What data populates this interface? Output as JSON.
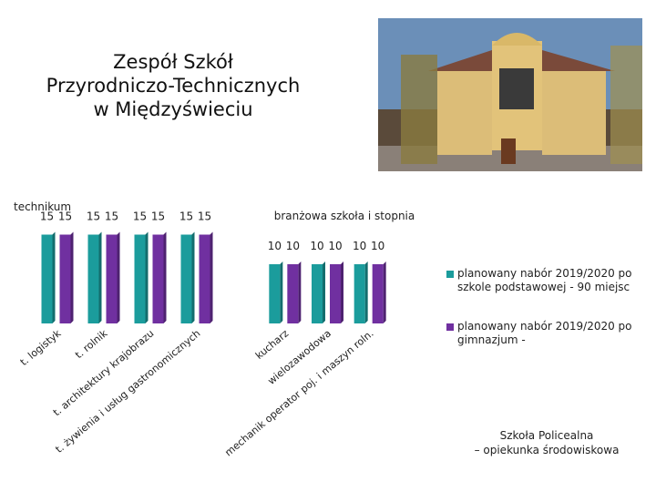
{
  "slide": {
    "title_lines": [
      "Zespół Szkół",
      "Przyrodniczo-Technicznych",
      "w Międzyświeciu"
    ],
    "footer_lines": [
      "Szkoła Policealna",
      "– opiekunka środowiskowa"
    ]
  },
  "chart_data": [
    {
      "type": "bar",
      "title": "technikum",
      "categories": [
        "t. logistyk",
        "t. rolnik",
        "t. architektury krajobrazu",
        "t. żywienia i usług gastronomicznych"
      ],
      "series": [
        {
          "name": "planowany nabór 2019/2020 po szkole podstawowej - 90 miejsc",
          "color": "#1b9c9c",
          "values": [
            15,
            15,
            15,
            15
          ]
        },
        {
          "name": "planowany nabór 2019/2020 po gimnazjum -",
          "color": "#7030a0",
          "values": [
            15,
            15,
            15,
            15
          ]
        }
      ]
    },
    {
      "type": "bar",
      "title": "branżowa szkoła i stopnia",
      "categories": [
        "kucharz",
        "wielozawodowa",
        "mechanik operator poj. i maszyn roln."
      ],
      "series": [
        {
          "color": "#1b9c9c",
          "values": [
            10,
            10,
            10
          ]
        },
        {
          "color": "#7030a0",
          "values": [
            10,
            10,
            10
          ]
        }
      ]
    }
  ]
}
